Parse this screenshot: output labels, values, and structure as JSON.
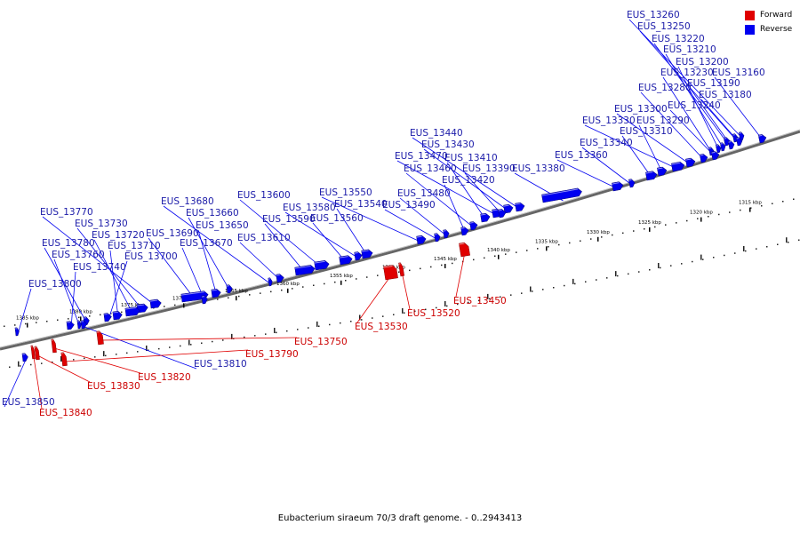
{
  "caption": "Eubacterium siraeum 70/3 draft genome. - 0..2943413",
  "legend": [
    {
      "label": "Forward",
      "color": "#e00000"
    },
    {
      "label": "Reverse",
      "color": "#0000f0"
    }
  ],
  "scale_ticks": [
    "1385 kbp",
    "1380 kbp",
    "1375 kbp",
    "1370 kbp",
    "1365 kbp",
    "1360 kbp",
    "1355 kbp",
    "1350 kbp",
    "1345 kbp",
    "1340 kbp",
    "1335 kbp",
    "1330 kbp",
    "1325 kbp",
    "1320 kbp",
    "1315 kbp"
  ],
  "genes": [
    {
      "id": "EUS_13260",
      "strand": "reverse"
    },
    {
      "id": "EUS_13250",
      "strand": "reverse"
    },
    {
      "id": "EUS_13220",
      "strand": "reverse"
    },
    {
      "id": "EUS_13210",
      "strand": "reverse"
    },
    {
      "id": "EUS_13200",
      "strand": "reverse"
    },
    {
      "id": "EUS_13230",
      "strand": "reverse"
    },
    {
      "id": "EUS_13160",
      "strand": "reverse"
    },
    {
      "id": "EUS_13280",
      "strand": "reverse"
    },
    {
      "id": "EUS_13190",
      "strand": "reverse"
    },
    {
      "id": "EUS_13180",
      "strand": "reverse"
    },
    {
      "id": "EUS_13240",
      "strand": "reverse"
    },
    {
      "id": "EUS_13300",
      "strand": "reverse"
    },
    {
      "id": "EUS_13330",
      "strand": "reverse"
    },
    {
      "id": "EUS_13290",
      "strand": "reverse"
    },
    {
      "id": "EUS_13310",
      "strand": "reverse"
    },
    {
      "id": "EUS_13340",
      "strand": "reverse"
    },
    {
      "id": "EUS_13360",
      "strand": "reverse"
    },
    {
      "id": "EUS_13380",
      "strand": "reverse"
    },
    {
      "id": "EUS_13440",
      "strand": "reverse"
    },
    {
      "id": "EUS_13430",
      "strand": "reverse"
    },
    {
      "id": "EUS_13470",
      "strand": "reverse"
    },
    {
      "id": "EUS_13410",
      "strand": "reverse"
    },
    {
      "id": "EUS_13460",
      "strand": "reverse"
    },
    {
      "id": "EUS_13390",
      "strand": "reverse"
    },
    {
      "id": "EUS_13420",
      "strand": "reverse"
    },
    {
      "id": "EUS_13480",
      "strand": "reverse"
    },
    {
      "id": "EUS_13490",
      "strand": "reverse"
    },
    {
      "id": "EUS_13550",
      "strand": "reverse"
    },
    {
      "id": "EUS_13540",
      "strand": "reverse"
    },
    {
      "id": "EUS_13580",
      "strand": "reverse"
    },
    {
      "id": "EUS_13560",
      "strand": "reverse"
    },
    {
      "id": "EUS_13600",
      "strand": "reverse"
    },
    {
      "id": "EUS_13590",
      "strand": "reverse"
    },
    {
      "id": "EUS_13610",
      "strand": "reverse"
    },
    {
      "id": "EUS_13680",
      "strand": "reverse"
    },
    {
      "id": "EUS_13660",
      "strand": "reverse"
    },
    {
      "id": "EUS_13650",
      "strand": "reverse"
    },
    {
      "id": "EUS_13690",
      "strand": "reverse"
    },
    {
      "id": "EUS_13670",
      "strand": "reverse"
    },
    {
      "id": "EUS_13770",
      "strand": "reverse"
    },
    {
      "id": "EUS_13730",
      "strand": "reverse"
    },
    {
      "id": "EUS_13720",
      "strand": "reverse"
    },
    {
      "id": "EUS_13710",
      "strand": "reverse"
    },
    {
      "id": "EUS_13700",
      "strand": "reverse"
    },
    {
      "id": "EUS_13780",
      "strand": "reverse"
    },
    {
      "id": "EUS_13760",
      "strand": "reverse"
    },
    {
      "id": "EUS_13740",
      "strand": "reverse"
    },
    {
      "id": "EUS_13800",
      "strand": "reverse"
    },
    {
      "id": "EUS_13810",
      "strand": "reverse"
    },
    {
      "id": "EUS_13850",
      "strand": "reverse"
    },
    {
      "id": "EUS_13450",
      "strand": "forward"
    },
    {
      "id": "EUS_13520",
      "strand": "forward"
    },
    {
      "id": "EUS_13530",
      "strand": "forward"
    },
    {
      "id": "EUS_13750",
      "strand": "forward"
    },
    {
      "id": "EUS_13790",
      "strand": "forward"
    },
    {
      "id": "EUS_13820",
      "strand": "forward"
    },
    {
      "id": "EUS_13830",
      "strand": "forward"
    },
    {
      "id": "EUS_13840",
      "strand": "forward"
    }
  ]
}
